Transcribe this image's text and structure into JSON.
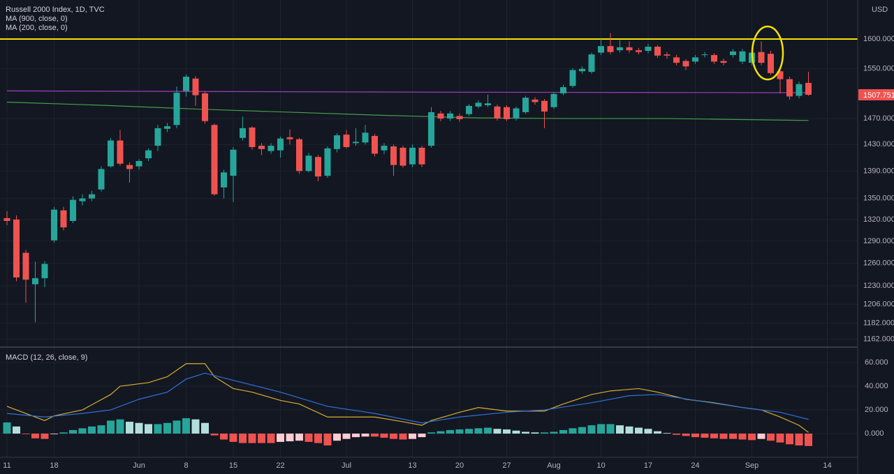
{
  "chart_data": [
    {
      "type": "candlestick",
      "title": "Russell 2000 Index, 1D, TVC",
      "currency": "USD",
      "categories": [
        "11",
        null,
        null,
        null,
        null,
        "18",
        null,
        null,
        null,
        null,
        null,
        null,
        null,
        null,
        "Jun",
        null,
        null,
        null,
        null,
        "8",
        null,
        null,
        null,
        null,
        "15",
        null,
        null,
        null,
        null,
        "22",
        null,
        null,
        null,
        null,
        null,
        null,
        "Jul",
        null,
        null,
        null,
        null,
        null,
        null,
        "13",
        null,
        null,
        null,
        null,
        "20",
        null,
        null,
        null,
        null,
        "27",
        null,
        null,
        null,
        null,
        "Aug",
        null,
        null,
        null,
        null,
        "10",
        null,
        null,
        null,
        null,
        "17",
        null,
        null,
        null,
        null,
        "24",
        null,
        null,
        null,
        null,
        null,
        "Sep",
        null,
        null,
        null,
        null,
        null,
        null,
        null,
        "14"
      ],
      "open": [
        1322,
        1320,
        1274,
        1232,
        1240,
        1291,
        1333,
        1318,
        1346,
        1350,
        1363,
        1397,
        1436,
        1399,
        1397,
        1409,
        1428,
        1454,
        1460,
        1514,
        1534,
        1510,
        1460,
        1366,
        1383,
        1440,
        1456,
        1428,
        1420,
        1421,
        1441,
        1438,
        1390,
        1411,
        1383,
        1423,
        1445,
        1432,
        1433,
        1443,
        1421,
        1427,
        1425,
        1400,
        1425,
        1428,
        1478,
        1470,
        1474,
        1477,
        1489,
        1491,
        1489,
        1488,
        1470,
        1480,
        1500,
        1498,
        1488,
        1510,
        1522,
        1546,
        1545,
        1577,
        1588,
        1581,
        1586,
        1581,
        1580,
        1587,
        1574,
        1569,
        1563,
        1562,
        1573,
        1573,
        1563,
        1573,
        1562,
        1560,
        1578,
        1575,
        1546,
        1533,
        1506,
        1527,
        null,
        null
      ],
      "high": [
        1332,
        1326,
        1278,
        1262,
        1263,
        1338,
        1338,
        1353,
        1356,
        1361,
        1397,
        1440,
        1452,
        1403,
        1408,
        1424,
        1460,
        1463,
        1521,
        1541,
        1538,
        1513,
        1462,
        1392,
        1426,
        1473,
        1458,
        1432,
        1432,
        1442,
        1453,
        1440,
        1417,
        1414,
        1427,
        1447,
        1452,
        1455,
        1460,
        1446,
        1432,
        1430,
        1428,
        1430,
        1428,
        1488,
        1482,
        1482,
        1478,
        1493,
        1499,
        1508,
        1492,
        1491,
        1489,
        1506,
        1504,
        1501,
        1512,
        1524,
        1551,
        1554,
        1577,
        1600,
        1610,
        1598,
        1596,
        1585,
        1592,
        1590,
        1578,
        1573,
        1566,
        1573,
        1578,
        1576,
        1567,
        1583,
        1583,
        1581,
        1596,
        1580,
        1549,
        1537,
        1529,
        1545,
        null,
        null
      ],
      "low": [
        1312,
        1236,
        1208,
        1183,
        1228,
        1288,
        1305,
        1315,
        1340,
        1346,
        1360,
        1395,
        1398,
        1373,
        1392,
        1405,
        1420,
        1449,
        1455,
        1505,
        1490,
        1462,
        1354,
        1350,
        1345,
        1436,
        1422,
        1414,
        1416,
        1410,
        1430,
        1386,
        1388,
        1375,
        1380,
        1418,
        1424,
        1428,
        1430,
        1412,
        1415,
        1383,
        1395,
        1396,
        1396,
        1425,
        1466,
        1466,
        1465,
        1474,
        1486,
        1488,
        1467,
        1466,
        1467,
        1477,
        1492,
        1455,
        1485,
        1507,
        1519,
        1542,
        1542,
        1573,
        1574,
        1577,
        1577,
        1574,
        1576,
        1568,
        1567,
        1556,
        1548,
        1558,
        1569,
        1558,
        1556,
        1569,
        1558,
        1556,
        1556,
        1540,
        1510,
        1500,
        1502,
        1506,
        null,
        null
      ],
      "close": [
        1318,
        1241,
        1238,
        1240,
        1259,
        1334,
        1309,
        1348,
        1350,
        1356,
        1393,
        1436,
        1401,
        1393,
        1405,
        1421,
        1455,
        1458,
        1511,
        1537,
        1507,
        1466,
        1356,
        1388,
        1422,
        1455,
        1426,
        1423,
        1428,
        1439,
        1438,
        1390,
        1413,
        1382,
        1424,
        1444,
        1426,
        1434,
        1448,
        1416,
        1428,
        1399,
        1398,
        1425,
        1400,
        1480,
        1470,
        1478,
        1469,
        1490,
        1495,
        1494,
        1470,
        1469,
        1486,
        1503,
        1496,
        1481,
        1509,
        1520,
        1548,
        1550,
        1574,
        1588,
        1578,
        1586,
        1581,
        1578,
        1587,
        1572,
        1572,
        1560,
        1554,
        1569,
        1574,
        1562,
        1560,
        1579,
        1579,
        1577,
        1560,
        1543,
        1533,
        1505,
        1525,
        1507.751,
        null,
        null
      ],
      "up_color": "#26a69a",
      "down_color": "#ef5350",
      "ylim": [
        1153,
        1668
      ],
      "log_scale": true,
      "grid": true,
      "yticks": [
        {
          "value": 1600,
          "label": "1600.000"
        },
        {
          "value": 1550,
          "label": "1550.000"
        },
        {
          "value": 1470,
          "label": "1470.000"
        },
        {
          "value": 1430,
          "label": "1430.000"
        },
        {
          "value": 1390,
          "label": "1390.000"
        },
        {
          "value": 1350,
          "label": "1350.000"
        },
        {
          "value": 1320,
          "label": "1320.000"
        },
        {
          "value": 1290,
          "label": "1290.000"
        },
        {
          "value": 1260,
          "label": "1260.000"
        },
        {
          "value": 1230,
          "label": "1230.000"
        },
        {
          "value": 1206,
          "label": "1206.000"
        },
        {
          "value": 1182,
          "label": "1182.000"
        },
        {
          "value": 1162,
          "label": "1162.000"
        }
      ],
      "last_price": 1507.751,
      "horizontal_line": {
        "value": 1600,
        "color": "#f5e400"
      },
      "lines": [
        {
          "name": "MA (900, close, 0)",
          "color": "#9c3fc0",
          "x": [
            0,
            43,
            85
          ],
          "values": [
            1514,
            1512,
            1511
          ]
        },
        {
          "name": "MA (200, close, 0)",
          "color": "#43a047",
          "x": [
            0,
            10,
            20,
            30,
            40,
            50,
            60,
            70,
            85
          ],
          "values": [
            1496,
            1491,
            1485,
            1480,
            1475,
            1471,
            1470,
            1470,
            1467
          ]
        }
      ]
    },
    {
      "type": "macd",
      "title": "MACD (12, 26, close, 9)",
      "histogram": [
        9.4,
        6,
        -0.5,
        -4,
        -4.5,
        -0.5,
        1,
        3,
        4.5,
        6,
        7,
        11,
        12,
        10,
        9,
        8,
        8,
        9,
        11,
        13,
        12,
        9,
        -1.5,
        -5,
        -7,
        -8,
        -8,
        -8,
        -8,
        -7,
        -6.5,
        -6,
        -7,
        -8,
        -10,
        -6,
        -4.5,
        -3,
        -2.5,
        -2.5,
        -3.5,
        -4.5,
        -5,
        -4.5,
        -3,
        1,
        2,
        3,
        3.5,
        4,
        4.5,
        5,
        4,
        3.5,
        2.5,
        1.5,
        1,
        1,
        1.5,
        3,
        4.5,
        5.5,
        7,
        8,
        8,
        7,
        6,
        5,
        4,
        2,
        0.5,
        -1,
        -2,
        -3,
        -3.5,
        -4,
        -4.5,
        -4.5,
        -5,
        -5.5,
        -4.5,
        -6,
        -7.5,
        -9,
        -10,
        -10.5,
        null,
        null
      ],
      "histogram_colors": {
        "up_rising": "#26a69a",
        "up_falling": "#b2dfdb",
        "down_falling": "#ef5350",
        "down_rising": "#ffcdd2"
      },
      "series": [
        {
          "color": "#d9ae2c",
          "x": [
            0,
            4,
            5,
            8,
            11,
            12,
            15,
            17,
            19,
            21,
            22,
            24,
            26,
            29,
            31,
            34,
            36,
            39,
            42,
            44,
            45,
            48,
            50,
            53,
            57,
            59,
            62,
            64,
            67,
            69,
            72,
            75,
            78,
            80,
            82,
            84,
            85
          ],
          "values": [
            23,
            11,
            15,
            20,
            33,
            40,
            43,
            48,
            59,
            59,
            48,
            38,
            35,
            28,
            25,
            14,
            14,
            14,
            10,
            7,
            11,
            18,
            22,
            19,
            19,
            25,
            33,
            36,
            38,
            35,
            29,
            26,
            22,
            20,
            14,
            7,
            1
          ]
        },
        {
          "color": "#2f72d8",
          "x": [
            0,
            4,
            8,
            11,
            14,
            17,
            19,
            21,
            24,
            29,
            34,
            39,
            44,
            48,
            53,
            57,
            62,
            66,
            69,
            73,
            78,
            82,
            85
          ],
          "values": [
            17,
            14,
            17,
            20,
            29,
            35,
            46,
            51,
            45,
            35,
            23,
            17,
            9,
            14,
            18,
            20,
            26,
            32,
            33,
            28,
            22,
            18,
            12
          ]
        }
      ],
      "ylim": [
        -19.4,
        71.8
      ],
      "yticks": [
        {
          "value": 60,
          "label": "60.000"
        },
        {
          "value": 40,
          "label": "40.000"
        },
        {
          "value": 20,
          "label": "20.000"
        },
        {
          "value": 0,
          "label": "0.000"
        }
      ]
    }
  ]
}
